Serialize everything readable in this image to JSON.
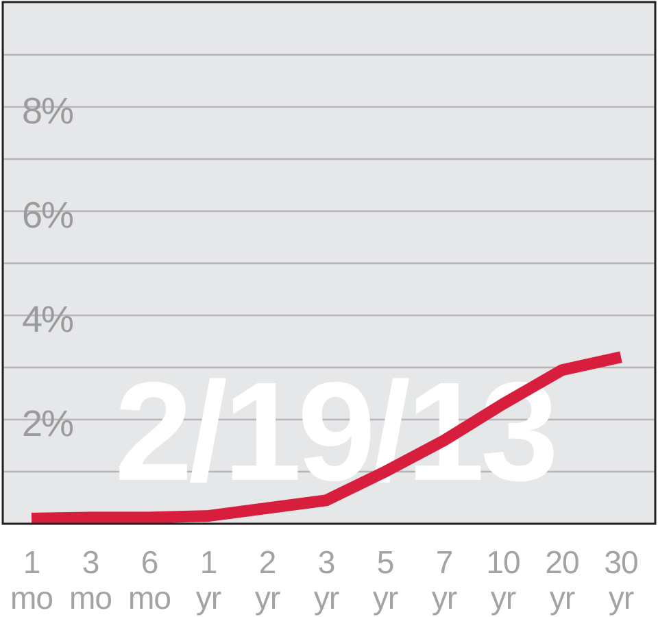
{
  "chart_data": {
    "type": "line",
    "title": "",
    "xlabel": "",
    "ylabel": "",
    "date_label": "2/19/13",
    "categories": [
      {
        "top": "1",
        "bottom": "mo"
      },
      {
        "top": "3",
        "bottom": "mo"
      },
      {
        "top": "6",
        "bottom": "mo"
      },
      {
        "top": "1",
        "bottom": "yr"
      },
      {
        "top": "2",
        "bottom": "yr"
      },
      {
        "top": "3",
        "bottom": "yr"
      },
      {
        "top": "5",
        "bottom": "yr"
      },
      {
        "top": "7",
        "bottom": "yr"
      },
      {
        "top": "10",
        "bottom": "yr"
      },
      {
        "top": "20",
        "bottom": "yr"
      },
      {
        "top": "30",
        "bottom": "yr"
      }
    ],
    "series": [
      {
        "values": [
          0.1,
          0.12,
          0.12,
          0.15,
          0.3,
          0.45,
          1.0,
          1.6,
          2.3,
          2.95,
          3.2
        ]
      }
    ],
    "y_ticks": [
      {
        "value": 2,
        "label": "2%"
      },
      {
        "value": 4,
        "label": "4%"
      },
      {
        "value": 6,
        "label": "6%"
      },
      {
        "value": 8,
        "label": "8%"
      }
    ],
    "ylim": [
      0,
      10
    ],
    "grid_step": 1,
    "grid": true,
    "colors": {
      "plot_background": "#e6e7e8",
      "line": "#d81e3d",
      "gridline": "#b4b5b7",
      "border": "#231f20",
      "tick_text": "#9a9b9d",
      "watermark": "#ffffff"
    }
  }
}
